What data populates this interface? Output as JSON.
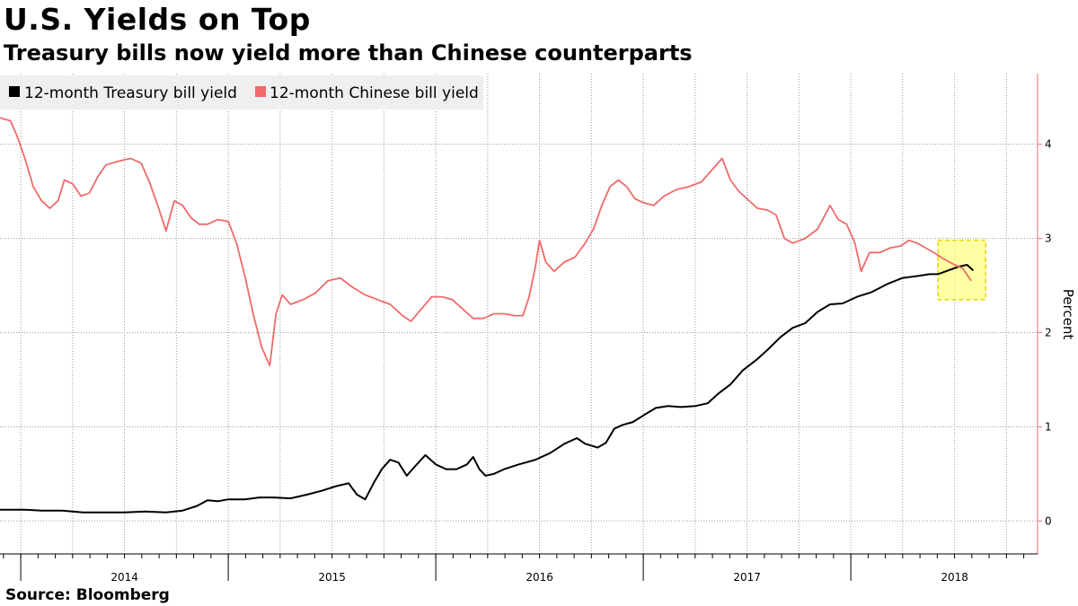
{
  "title": "U.S. Yields on Top",
  "subtitle": "Treasury bills now yield more than Chinese counterparts",
  "source": "Source: Bloomberg",
  "colors": {
    "treasury": "#000000",
    "china": "#f06a6a",
    "highlight": "#ffff66",
    "grid": "#9a9a9a"
  },
  "chart_data": {
    "type": "line",
    "ylabel": "Percent",
    "ylim": [
      -0.35,
      4.75
    ],
    "yticks": [
      0,
      1,
      2,
      3,
      4
    ],
    "xlim": [
      2013.9,
      2018.9
    ],
    "year_labels": [
      {
        "label": "2014",
        "x": 2014.5
      },
      {
        "label": "2015",
        "x": 2015.5
      },
      {
        "label": "2016",
        "x": 2016.5
      },
      {
        "label": "2017",
        "x": 2017.5
      },
      {
        "label": "2018",
        "x": 2018.5
      }
    ],
    "legend_position": "top-left",
    "grid": true,
    "highlight": {
      "x": [
        2018.42,
        2018.65
      ],
      "y": [
        2.35,
        2.98
      ]
    },
    "series": [
      {
        "name": "12-month Treasury bill yield",
        "color": "#000000",
        "points": [
          [
            2013.9,
            0.12
          ],
          [
            2013.96,
            0.12
          ],
          [
            2014.02,
            0.12
          ],
          [
            2014.1,
            0.11
          ],
          [
            2014.2,
            0.11
          ],
          [
            2014.3,
            0.09
          ],
          [
            2014.4,
            0.09
          ],
          [
            2014.5,
            0.09
          ],
          [
            2014.6,
            0.1
          ],
          [
            2014.7,
            0.09
          ],
          [
            2014.78,
            0.11
          ],
          [
            2014.85,
            0.16
          ],
          [
            2014.9,
            0.22
          ],
          [
            2014.95,
            0.21
          ],
          [
            2015.0,
            0.23
          ],
          [
            2015.08,
            0.23
          ],
          [
            2015.15,
            0.25
          ],
          [
            2015.22,
            0.25
          ],
          [
            2015.3,
            0.24
          ],
          [
            2015.38,
            0.28
          ],
          [
            2015.45,
            0.32
          ],
          [
            2015.52,
            0.37
          ],
          [
            2015.58,
            0.4
          ],
          [
            2015.62,
            0.28
          ],
          [
            2015.66,
            0.23
          ],
          [
            2015.7,
            0.4
          ],
          [
            2015.74,
            0.55
          ],
          [
            2015.78,
            0.65
          ],
          [
            2015.82,
            0.62
          ],
          [
            2015.86,
            0.48
          ],
          [
            2015.9,
            0.58
          ],
          [
            2015.95,
            0.7
          ],
          [
            2016.0,
            0.6
          ],
          [
            2016.05,
            0.55
          ],
          [
            2016.1,
            0.55
          ],
          [
            2016.15,
            0.6
          ],
          [
            2016.18,
            0.68
          ],
          [
            2016.21,
            0.55
          ],
          [
            2016.24,
            0.48
          ],
          [
            2016.28,
            0.5
          ],
          [
            2016.33,
            0.55
          ],
          [
            2016.4,
            0.6
          ],
          [
            2016.48,
            0.65
          ],
          [
            2016.55,
            0.72
          ],
          [
            2016.62,
            0.82
          ],
          [
            2016.68,
            0.88
          ],
          [
            2016.72,
            0.82
          ],
          [
            2016.78,
            0.78
          ],
          [
            2016.82,
            0.83
          ],
          [
            2016.86,
            0.98
          ],
          [
            2016.9,
            1.02
          ],
          [
            2016.95,
            1.05
          ],
          [
            2017.0,
            1.12
          ],
          [
            2017.06,
            1.2
          ],
          [
            2017.12,
            1.22
          ],
          [
            2017.18,
            1.21
          ],
          [
            2017.25,
            1.22
          ],
          [
            2017.31,
            1.25
          ],
          [
            2017.36,
            1.35
          ],
          [
            2017.42,
            1.45
          ],
          [
            2017.48,
            1.6
          ],
          [
            2017.55,
            1.72
          ],
          [
            2017.6,
            1.82
          ],
          [
            2017.66,
            1.95
          ],
          [
            2017.72,
            2.05
          ],
          [
            2017.78,
            2.1
          ],
          [
            2017.84,
            2.22
          ],
          [
            2017.9,
            2.3
          ],
          [
            2017.96,
            2.31
          ],
          [
            2018.03,
            2.38
          ],
          [
            2018.1,
            2.43
          ],
          [
            2018.18,
            2.52
          ],
          [
            2018.25,
            2.58
          ],
          [
            2018.32,
            2.6
          ],
          [
            2018.38,
            2.62
          ],
          [
            2018.42,
            2.62
          ],
          [
            2018.47,
            2.66
          ],
          [
            2018.52,
            2.7
          ],
          [
            2018.56,
            2.72
          ],
          [
            2018.59,
            2.66
          ]
        ]
      },
      {
        "name": "12-month Chinese bill yield",
        "color": "#f06a6a",
        "points": [
          [
            2013.9,
            4.28
          ],
          [
            2013.95,
            4.25
          ],
          [
            2013.98,
            4.1
          ],
          [
            2014.02,
            3.85
          ],
          [
            2014.06,
            3.55
          ],
          [
            2014.1,
            3.4
          ],
          [
            2014.14,
            3.32
          ],
          [
            2014.18,
            3.4
          ],
          [
            2014.21,
            3.62
          ],
          [
            2014.25,
            3.58
          ],
          [
            2014.29,
            3.45
          ],
          [
            2014.33,
            3.48
          ],
          [
            2014.37,
            3.65
          ],
          [
            2014.41,
            3.78
          ],
          [
            2014.47,
            3.82
          ],
          [
            2014.53,
            3.85
          ],
          [
            2014.58,
            3.8
          ],
          [
            2014.62,
            3.6
          ],
          [
            2014.66,
            3.35
          ],
          [
            2014.7,
            3.08
          ],
          [
            2014.74,
            3.4
          ],
          [
            2014.78,
            3.35
          ],
          [
            2014.82,
            3.22
          ],
          [
            2014.86,
            3.15
          ],
          [
            2014.9,
            3.15
          ],
          [
            2014.95,
            3.2
          ],
          [
            2015.0,
            3.18
          ],
          [
            2015.04,
            2.95
          ],
          [
            2015.08,
            2.6
          ],
          [
            2015.12,
            2.2
          ],
          [
            2015.16,
            1.85
          ],
          [
            2015.2,
            1.65
          ],
          [
            2015.23,
            2.2
          ],
          [
            2015.26,
            2.4
          ],
          [
            2015.3,
            2.3
          ],
          [
            2015.36,
            2.35
          ],
          [
            2015.42,
            2.42
          ],
          [
            2015.48,
            2.55
          ],
          [
            2015.54,
            2.58
          ],
          [
            2015.6,
            2.48
          ],
          [
            2015.66,
            2.4
          ],
          [
            2015.72,
            2.35
          ],
          [
            2015.78,
            2.3
          ],
          [
            2015.84,
            2.18
          ],
          [
            2015.88,
            2.12
          ],
          [
            2015.93,
            2.25
          ],
          [
            2015.98,
            2.38
          ],
          [
            2016.03,
            2.38
          ],
          [
            2016.08,
            2.35
          ],
          [
            2016.13,
            2.25
          ],
          [
            2016.18,
            2.15
          ],
          [
            2016.23,
            2.15
          ],
          [
            2016.28,
            2.2
          ],
          [
            2016.33,
            2.2
          ],
          [
            2016.38,
            2.18
          ],
          [
            2016.42,
            2.18
          ],
          [
            2016.45,
            2.38
          ],
          [
            2016.48,
            2.7
          ],
          [
            2016.5,
            2.98
          ],
          [
            2016.53,
            2.75
          ],
          [
            2016.57,
            2.65
          ],
          [
            2016.62,
            2.75
          ],
          [
            2016.67,
            2.8
          ],
          [
            2016.72,
            2.95
          ],
          [
            2016.76,
            3.1
          ],
          [
            2016.8,
            3.35
          ],
          [
            2016.84,
            3.55
          ],
          [
            2016.88,
            3.62
          ],
          [
            2016.92,
            3.55
          ],
          [
            2016.96,
            3.42
          ],
          [
            2017.0,
            3.38
          ],
          [
            2017.05,
            3.35
          ],
          [
            2017.1,
            3.45
          ],
          [
            2017.16,
            3.52
          ],
          [
            2017.22,
            3.55
          ],
          [
            2017.28,
            3.6
          ],
          [
            2017.34,
            3.75
          ],
          [
            2017.38,
            3.85
          ],
          [
            2017.42,
            3.62
          ],
          [
            2017.46,
            3.5
          ],
          [
            2017.5,
            3.42
          ],
          [
            2017.55,
            3.32
          ],
          [
            2017.6,
            3.3
          ],
          [
            2017.64,
            3.25
          ],
          [
            2017.68,
            3.0
          ],
          [
            2017.72,
            2.95
          ],
          [
            2017.78,
            3.0
          ],
          [
            2017.84,
            3.1
          ],
          [
            2017.9,
            3.35
          ],
          [
            2017.94,
            3.2
          ],
          [
            2017.98,
            3.15
          ],
          [
            2018.02,
            2.95
          ],
          [
            2018.05,
            2.65
          ],
          [
            2018.09,
            2.85
          ],
          [
            2018.14,
            2.85
          ],
          [
            2018.19,
            2.9
          ],
          [
            2018.24,
            2.92
          ],
          [
            2018.28,
            2.98
          ],
          [
            2018.32,
            2.95
          ],
          [
            2018.36,
            2.9
          ],
          [
            2018.4,
            2.85
          ],
          [
            2018.45,
            2.78
          ],
          [
            2018.5,
            2.72
          ],
          [
            2018.54,
            2.68
          ],
          [
            2018.58,
            2.55
          ]
        ]
      }
    ]
  }
}
